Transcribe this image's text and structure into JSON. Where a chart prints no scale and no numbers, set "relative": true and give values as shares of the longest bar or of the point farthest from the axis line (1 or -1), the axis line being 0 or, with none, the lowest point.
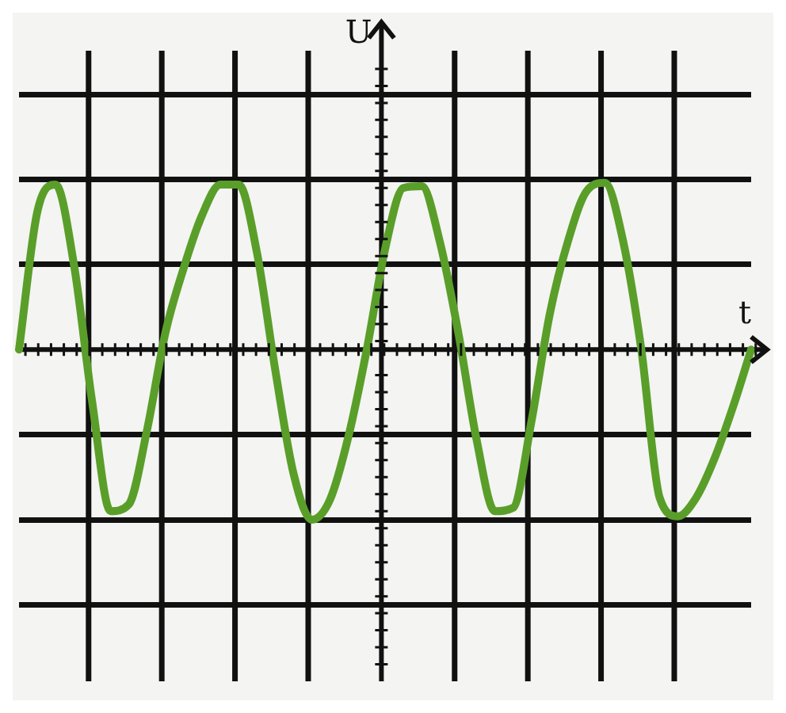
{
  "chart_data": {
    "type": "line",
    "relative": true,
    "xlabel": "t",
    "ylabel": "U",
    "grid": true,
    "marker": "none",
    "line_style": "solid",
    "categories": [
      null,
      null,
      null,
      null,
      null,
      null,
      null,
      null,
      null,
      null,
      null,
      null,
      null,
      null,
      null,
      null,
      null,
      null,
      null,
      null,
      null,
      null,
      null,
      null,
      null,
      null,
      null,
      null,
      null,
      null,
      null,
      null,
      null,
      null,
      null,
      null,
      null,
      null,
      null,
      null,
      null
    ],
    "series": [
      {
        "color": "#5a9e2a",
        "values": [
          0,
          0.81,
          0.97,
          0.5,
          -0.31,
          -0.95,
          -0.91,
          -0.47,
          0.1,
          0.48,
          0.79,
          0.97,
          0.97,
          0.57,
          -0.12,
          -0.73,
          -1,
          -0.88,
          -0.51,
          0,
          0.59,
          0.95,
          0.96,
          0.63,
          0.1,
          -0.53,
          -0.95,
          -0.93,
          -0.42,
          0.21,
          0.64,
          0.93,
          0.98,
          0.64,
          0,
          -0.87,
          -0.98,
          -0.87,
          -0.64,
          -0.34,
          0
        ]
      }
    ]
  }
}
